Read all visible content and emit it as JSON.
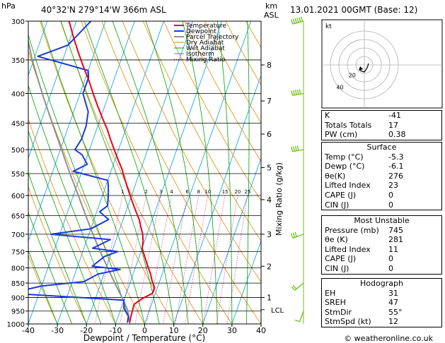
{
  "header": {
    "hpa_label": "hPa",
    "location": "40°32'N  279°14'W  366m  ASL",
    "km_label": "km",
    "asl_label": "ASL",
    "datetime": "13.01.2021  00GMT  (Base: 12)"
  },
  "chart_data": {
    "type": "skew-t",
    "title": "40°32'N 279°14'W 366m ASL",
    "xlabel": "Dewpoint / Temperature (°C)",
    "ylabel_right": "Mixing Ratio (g/kg)",
    "x_ticks": [
      "-40",
      "-30",
      "-20",
      "-10",
      "0",
      "10",
      "20",
      "30",
      "40"
    ],
    "p_ticks": [
      "300",
      "350",
      "400",
      "450",
      "500",
      "550",
      "600",
      "650",
      "700",
      "750",
      "800",
      "850",
      "900",
      "950",
      "1000"
    ],
    "km_ticks": [
      "8",
      "7",
      "6",
      "5",
      "4",
      "3",
      "2",
      "1"
    ],
    "lcl_label": "LCL",
    "mixing_ratio_labels": [
      "1",
      "2",
      "3",
      "4",
      "6",
      "8",
      "10",
      "15",
      "20",
      "25"
    ],
    "legend": [
      "Temperature",
      "Dewpoint",
      "Parcel Trajectory",
      "Dry Adiabat",
      "Wet Adiabat",
      "Isotherm",
      "Mixing Ratio"
    ],
    "colors": {
      "temperature": "#e8001a",
      "dewpoint": "#1a3bd8",
      "parcel": "#909090",
      "dry_adiabat": "#e08a00",
      "wet_adiabat": "#00a000",
      "isotherm": "#00a0e0",
      "mixing_ratio": "#d0007a",
      "wind": "#6cc020"
    },
    "temperature": {
      "p": [
        995,
        975,
        950,
        925,
        905,
        885,
        865,
        845,
        820,
        800,
        780,
        760,
        740,
        720,
        700,
        680,
        660,
        640,
        620,
        600,
        580,
        560,
        540,
        520,
        500,
        480,
        460,
        440,
        420,
        400,
        380,
        360,
        340,
        320,
        300
      ],
      "t": [
        -5.3,
        -5.6,
        -5.8,
        -6.0,
        -4.0,
        -1.0,
        -1.0,
        -2.5,
        -4.0,
        -5.5,
        -7.0,
        -8.5,
        -10.0,
        -10.5,
        -11.5,
        -13.0,
        -14.5,
        -16.5,
        -18.5,
        -20.5,
        -22.5,
        -24.5,
        -26.5,
        -29.0,
        -31.5,
        -34.0,
        -36.5,
        -39.5,
        -42.5,
        -45.5,
        -48.5,
        -52.0,
        -55.5,
        -59.0,
        -62.5
      ]
    },
    "dewpoint": {
      "p": [
        995,
        970,
        940,
        910,
        885,
        860,
        845,
        820,
        805,
        795,
        785,
        765,
        750,
        740,
        725,
        715,
        700,
        685,
        670,
        660,
        640,
        625,
        600,
        580,
        565,
        545,
        530,
        510,
        500,
        480,
        455,
        430,
        400,
        375,
        365,
        345,
        330,
        300
      ],
      "t": [
        -6.1,
        -6.5,
        -9.0,
        -10.0,
        -50.0,
        -40.0,
        -26.0,
        -22.0,
        -15.0,
        -25.0,
        -24.0,
        -22.0,
        -18.0,
        -27.0,
        -24.0,
        -22.0,
        -43.0,
        -30.0,
        -27.0,
        -25.0,
        -29.0,
        -27.0,
        -28.0,
        -29.0,
        -30.0,
        -43.0,
        -39.0,
        -42.0,
        -45.0,
        -44.0,
        -44.0,
        -45.0,
        -49.0,
        -49.0,
        -50.0,
        -69.0,
        -60.0,
        -55.0
      ]
    },
    "parcel": {
      "p": [
        995,
        945,
        900,
        850,
        800,
        750,
        700,
        650,
        600,
        550,
        500,
        450,
        400,
        350,
        300
      ],
      "t": [
        -5.3,
        -7.6,
        -11.0,
        -15.2,
        -19.5,
        -24.0,
        -28.6,
        -33.3,
        -38.3,
        -43.8,
        -49.6,
        -56.0,
        -63.0,
        -70.5,
        -78.0
      ]
    },
    "wind_barbs": [
      {
        "p": 950,
        "dir": 200,
        "kt": 10
      },
      {
        "p": 850,
        "dir": 230,
        "kt": 15
      },
      {
        "p": 700,
        "dir": 250,
        "kt": 25
      },
      {
        "p": 500,
        "dir": 260,
        "kt": 35
      },
      {
        "p": 400,
        "dir": 260,
        "kt": 45
      },
      {
        "p": 300,
        "dir": 255,
        "kt": 60
      }
    ]
  },
  "hodograph": {
    "label": "kt",
    "ring_labels": [
      "20",
      "40"
    ]
  },
  "indices": {
    "rows": [
      {
        "k": "K",
        "v": "-41"
      },
      {
        "k": "Totals Totals",
        "v": "17"
      },
      {
        "k": "PW (cm)",
        "v": "0.38"
      }
    ]
  },
  "surface": {
    "title": "Surface",
    "rows": [
      {
        "k": "Temp (°C)",
        "v": "-5.3"
      },
      {
        "k": "Dewp (°C)",
        "v": "-6.1"
      },
      {
        "k": "θe(K)",
        "v": "276"
      },
      {
        "k": "Lifted Index",
        "v": "23"
      },
      {
        "k": "CAPE (J)",
        "v": "0"
      },
      {
        "k": "CIN (J)",
        "v": "0"
      }
    ]
  },
  "unstable": {
    "title": "Most Unstable",
    "rows": [
      {
        "k": "Pressure (mb)",
        "v": "745"
      },
      {
        "k": "θe (K)",
        "v": "281"
      },
      {
        "k": "Lifted Index",
        "v": "11"
      },
      {
        "k": "CAPE (J)",
        "v": "0"
      },
      {
        "k": "CIN (J)",
        "v": "0"
      }
    ]
  },
  "hodo_table": {
    "title": "Hodograph",
    "rows": [
      {
        "k": "EH",
        "v": "31"
      },
      {
        "k": "SREH",
        "v": "47"
      },
      {
        "k": "StmDir",
        "v": "55°"
      },
      {
        "k": "StmSpd (kt)",
        "v": "12"
      }
    ]
  },
  "footer": {
    "copyright": "© weatheronline.co.uk"
  }
}
